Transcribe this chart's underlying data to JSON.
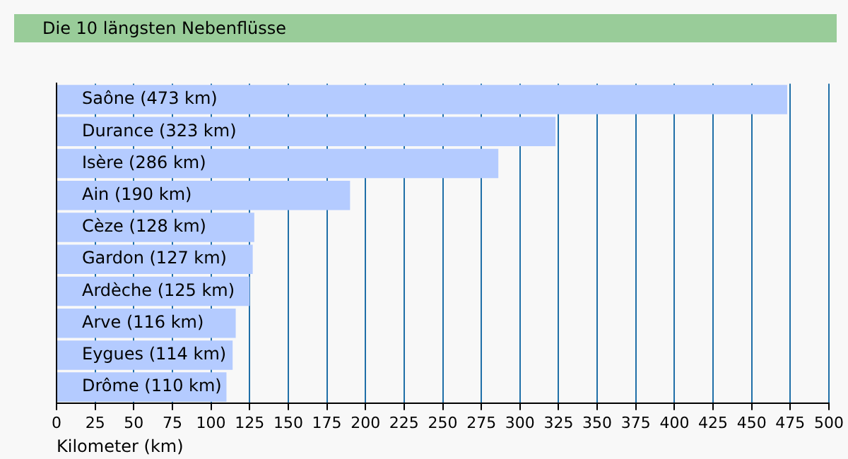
{
  "chart_data": {
    "type": "bar",
    "orientation": "horizontal",
    "title": "Die 10 längsten Nebenflüsse",
    "xlabel": "Kilometer (km)",
    "categories": [
      "Saône (473 km)",
      "Durance (323 km)",
      "Isère (286 km)",
      "Ain (190 km)",
      "Cèze (128 km)",
      "Gardon (127 km)",
      "Ardèche (125 km)",
      "Arve (116 km)",
      "Eygues (114 km)",
      "Drôme (110 km)"
    ],
    "values": [
      473,
      323,
      286,
      190,
      128,
      127,
      125,
      116,
      114,
      110
    ],
    "color": "#b4cbff",
    "xlim": [
      0,
      500
    ],
    "xticks": [
      0,
      25,
      50,
      75,
      100,
      125,
      150,
      175,
      200,
      225,
      250,
      275,
      300,
      325,
      350,
      375,
      400,
      425,
      450,
      475,
      500
    ],
    "grid": "x"
  }
}
